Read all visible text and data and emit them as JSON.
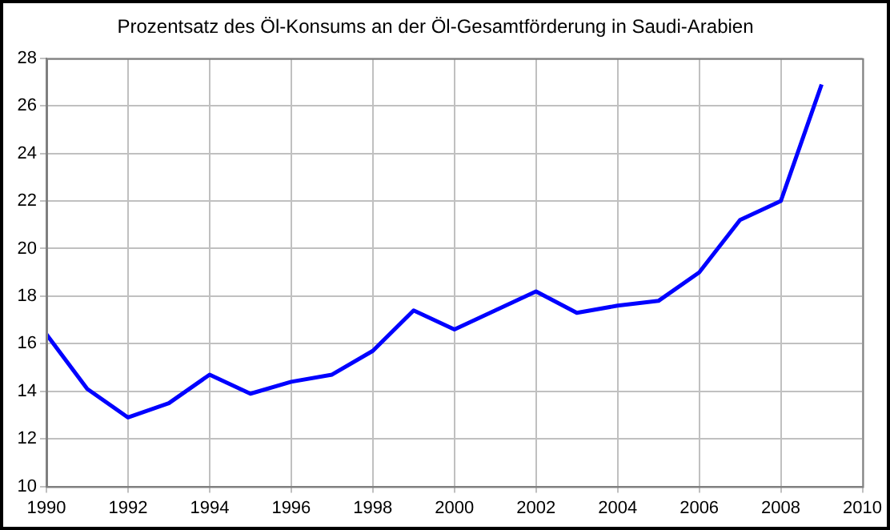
{
  "chart_data": {
    "type": "line",
    "title": "Prozentsatz des Öl-Konsums an der Öl-Gesamtförderung in Saudi-Arabien",
    "x": [
      1990,
      1991,
      1992,
      1993,
      1994,
      1995,
      1996,
      1997,
      1998,
      1999,
      2000,
      2001,
      2002,
      2003,
      2004,
      2005,
      2006,
      2007,
      2008,
      2009
    ],
    "series": [
      {
        "color": "#0000ff",
        "values": [
          16.4,
          14.1,
          12.9,
          13.5,
          14.7,
          13.9,
          14.4,
          14.7,
          15.7,
          17.4,
          16.6,
          17.4,
          18.2,
          17.3,
          17.6,
          17.8,
          19.0,
          21.2,
          22.0,
          26.9
        ]
      }
    ],
    "xlim": [
      1990,
      2010
    ],
    "xticks": [
      1990,
      1992,
      1994,
      1996,
      1998,
      2000,
      2002,
      2004,
      2006,
      2008,
      2010
    ],
    "ylim": [
      10,
      28
    ],
    "yticks": [
      10,
      12,
      14,
      16,
      18,
      20,
      22,
      24,
      26,
      28
    ],
    "grid": true,
    "legend": false,
    "marker": "none",
    "line_style": "solid"
  }
}
